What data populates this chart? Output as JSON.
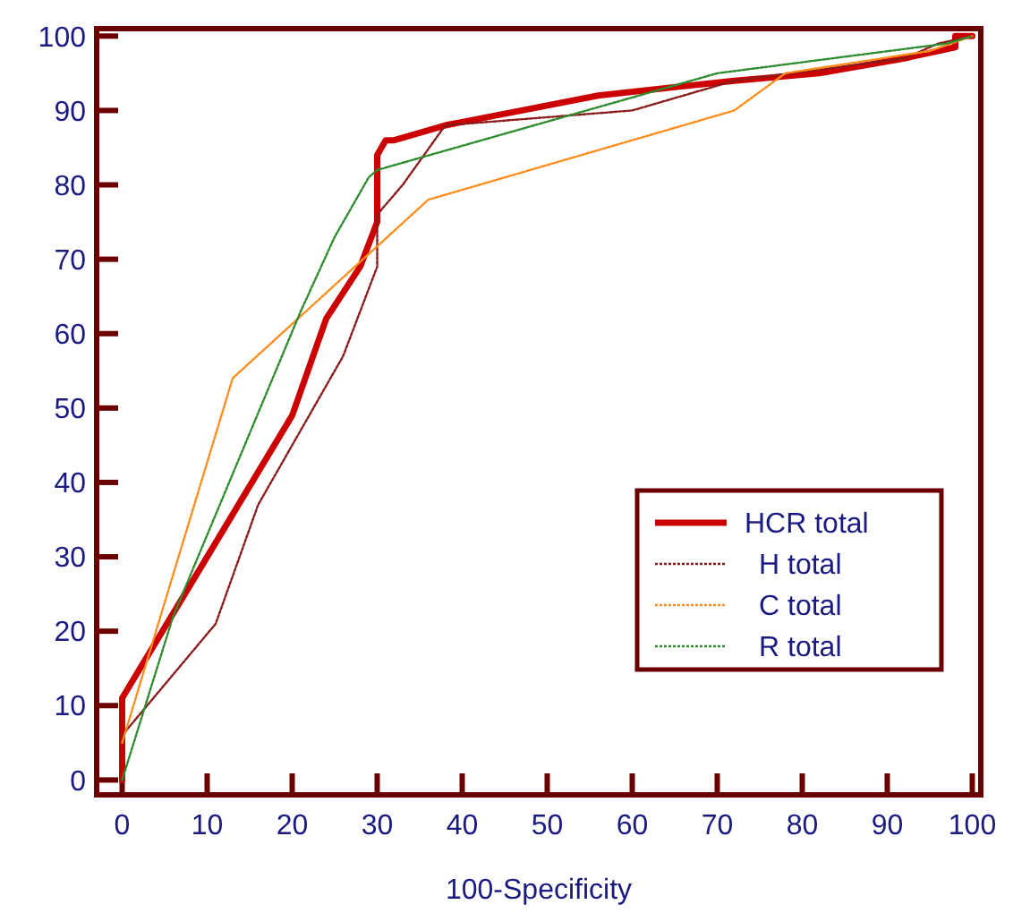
{
  "chart_data": {
    "type": "line",
    "xlabel": "100-Specificity",
    "xlim": [
      -3,
      101
    ],
    "ylim": [
      -2,
      101
    ],
    "xticks": [
      0,
      10,
      20,
      30,
      40,
      50,
      60,
      70,
      80,
      90,
      100
    ],
    "yticks": [
      0,
      10,
      20,
      30,
      40,
      50,
      60,
      70,
      80,
      90,
      100
    ],
    "grid": false,
    "legend": "bottom right",
    "marker": "none",
    "series": [
      {
        "name": "HCR total",
        "color": "#cc0000",
        "line_style": "solid",
        "x": [
          0,
          0,
          20,
          24,
          28,
          30,
          30,
          31,
          32,
          38,
          56,
          72,
          82,
          92,
          98,
          98,
          100
        ],
        "values": [
          0,
          11,
          49,
          62,
          69,
          75,
          84,
          86,
          86,
          88,
          92,
          94,
          95,
          97,
          98.5,
          100,
          100
        ]
      },
      {
        "name": "H total",
        "color": "#8b1a1a",
        "line_style": "dotted",
        "x": [
          0,
          11,
          16,
          26,
          30,
          30,
          33,
          38,
          60,
          72,
          92,
          96,
          100
        ],
        "values": [
          6,
          21,
          37,
          57,
          69,
          76,
          80,
          88,
          90,
          94,
          97,
          99,
          100
        ]
      },
      {
        "name": "C total",
        "color": "#ff8c1a",
        "line_style": "dotted",
        "x": [
          0,
          13,
          36,
          72,
          78,
          95,
          100
        ],
        "values": [
          5,
          54,
          78,
          90,
          95,
          98,
          100
        ]
      },
      {
        "name": "R total",
        "color": "#2e8b2e",
        "line_style": "dotted",
        "x": [
          0,
          6,
          21,
          25,
          29,
          30,
          70,
          97,
          100
        ],
        "values": [
          0,
          22,
          63,
          73,
          81,
          82,
          95,
          99,
          100
        ]
      }
    ]
  }
}
